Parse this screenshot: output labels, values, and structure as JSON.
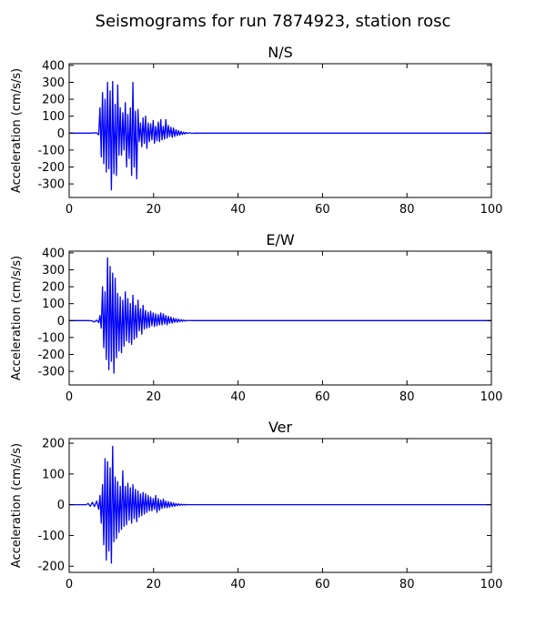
{
  "title": "Seismograms for run 7874923, station rosc",
  "chart_data": [
    {
      "type": "line",
      "title": "N/S",
      "xlabel": "",
      "ylabel": "Acceleration (cm/s/s)",
      "xlim": [
        0,
        100
      ],
      "ylim": [
        -380,
        410
      ],
      "xticks": [
        0,
        20,
        40,
        60,
        80,
        100
      ],
      "yticks": [
        -300,
        -200,
        -100,
        0,
        100,
        200,
        300,
        400
      ],
      "color": "#0000ff",
      "grid": false,
      "series": [
        {
          "x": [
            0,
            5,
            6.5,
            7,
            7.3,
            7.6,
            7.9,
            8.2,
            8.5,
            8.8,
            9.1,
            9.4,
            9.7,
            10,
            10.3,
            10.6,
            10.9,
            11.2,
            11.5,
            11.8,
            12.1,
            12.4,
            12.7,
            13,
            13.3,
            13.6,
            13.9,
            14.2,
            14.5,
            14.8,
            15.1,
            15.4,
            15.7,
            16,
            16.3,
            16.6,
            16.9,
            17.2,
            17.5,
            17.8,
            18.1,
            18.4,
            18.7,
            19,
            19.3,
            19.6,
            19.9,
            20.2,
            20.5,
            20.8,
            21.1,
            21.4,
            21.7,
            22,
            22.3,
            22.6,
            22.9,
            23.2,
            23.5,
            23.8,
            24.1,
            24.4,
            24.7,
            25,
            25.3,
            25.6,
            25.9,
            26.2,
            26.5,
            26.8,
            27.1,
            27.4,
            27.7,
            28,
            28.5,
            29,
            30,
            100
          ],
          "y": [
            0,
            0,
            2,
            -10,
            150,
            -140,
            240,
            -180,
            200,
            -230,
            300,
            -210,
            250,
            -335,
            305,
            -240,
            170,
            -250,
            285,
            -130,
            150,
            -130,
            120,
            -100,
            180,
            -200,
            110,
            -150,
            150,
            -250,
            300,
            -200,
            130,
            -270,
            140,
            -50,
            60,
            -80,
            90,
            -60,
            100,
            -90,
            60,
            -50,
            55,
            -40,
            75,
            -60,
            40,
            -45,
            65,
            -50,
            80,
            -40,
            40,
            -35,
            80,
            -30,
            45,
            -20,
            35,
            -25,
            30,
            -20,
            20,
            -15,
            15,
            -12,
            10,
            -8,
            6,
            -5,
            4,
            -2,
            2,
            -1,
            0,
            0
          ]
        }
      ]
    },
    {
      "type": "line",
      "title": "E/W",
      "xlabel": "",
      "ylabel": "Acceleration (cm/s/s)",
      "xlim": [
        0,
        100
      ],
      "ylim": [
        -380,
        410
      ],
      "xticks": [
        0,
        20,
        40,
        60,
        80,
        100
      ],
      "yticks": [
        -300,
        -200,
        -100,
        0,
        100,
        200,
        300,
        400
      ],
      "color": "#0000ff",
      "grid": false,
      "series": [
        {
          "x": [
            0,
            5,
            5.5,
            6,
            6.5,
            7,
            7.3,
            7.6,
            7.9,
            8.2,
            8.5,
            8.8,
            9.1,
            9.4,
            9.7,
            10,
            10.3,
            10.6,
            10.9,
            11.2,
            11.5,
            11.8,
            12.1,
            12.4,
            12.7,
            13,
            13.3,
            13.6,
            13.9,
            14.2,
            14.5,
            14.8,
            15.1,
            15.4,
            15.7,
            16,
            16.3,
            16.6,
            16.9,
            17.2,
            17.5,
            17.8,
            18.1,
            18.4,
            18.7,
            19,
            19.3,
            19.6,
            19.9,
            20.2,
            20.5,
            20.8,
            21.1,
            21.4,
            21.7,
            22,
            22.3,
            22.6,
            22.9,
            23.2,
            23.5,
            23.8,
            24.1,
            24.4,
            24.7,
            25,
            25.3,
            25.6,
            25.9,
            26.2,
            26.5,
            26.8,
            27.1,
            27.4,
            27.7,
            28,
            28.5,
            29,
            30,
            100
          ],
          "y": [
            0,
            0,
            -3,
            -8,
            3,
            -12,
            30,
            -45,
            200,
            -160,
            170,
            -230,
            370,
            -290,
            320,
            -240,
            280,
            -310,
            250,
            -220,
            160,
            -180,
            140,
            -190,
            120,
            -150,
            170,
            -120,
            130,
            -130,
            100,
            -140,
            150,
            -110,
            90,
            -100,
            120,
            -60,
            70,
            -80,
            90,
            -50,
            60,
            -45,
            50,
            -40,
            55,
            -30,
            45,
            -35,
            40,
            -30,
            35,
            -25,
            45,
            -25,
            40,
            -20,
            30,
            -25,
            25,
            -15,
            20,
            -15,
            15,
            -10,
            12,
            -10,
            8,
            -6,
            6,
            -5,
            4,
            -3,
            2,
            -1,
            1,
            0,
            0,
            0
          ]
        }
      ]
    },
    {
      "type": "line",
      "title": "Ver",
      "xlabel": "",
      "ylabel": "Acceleration (cm/s/s)",
      "xlim": [
        0,
        100
      ],
      "ylim": [
        -220,
        215
      ],
      "xticks": [
        0,
        20,
        40,
        60,
        80,
        100
      ],
      "yticks": [
        -200,
        -100,
        0,
        100,
        200
      ],
      "color": "#0000ff",
      "grid": false,
      "series": [
        {
          "x": [
            0,
            4,
            4.5,
            5,
            5.5,
            6,
            6.5,
            7,
            7.3,
            7.6,
            7.9,
            8.2,
            8.5,
            8.8,
            9.1,
            9.4,
            9.7,
            10,
            10.3,
            10.6,
            10.9,
            11.2,
            11.5,
            11.8,
            12.1,
            12.4,
            12.7,
            13,
            13.3,
            13.6,
            13.9,
            14.2,
            14.5,
            14.8,
            15.1,
            15.4,
            15.7,
            16,
            16.3,
            16.6,
            16.9,
            17.2,
            17.5,
            17.8,
            18.1,
            18.4,
            18.7,
            19,
            19.3,
            19.6,
            19.9,
            20.2,
            20.5,
            20.8,
            21.1,
            21.4,
            21.7,
            22,
            22.3,
            22.6,
            22.9,
            23.2,
            23.5,
            23.8,
            24.1,
            24.4,
            24.7,
            25,
            25.3,
            25.6,
            25.9,
            26.2,
            26.5,
            26.8,
            27.1,
            27.4,
            27.7,
            28,
            28.5,
            29,
            30,
            100
          ],
          "y": [
            0,
            0,
            4,
            -5,
            8,
            -6,
            12,
            -15,
            30,
            -60,
            65,
            -130,
            150,
            -180,
            140,
            -150,
            120,
            -190,
            190,
            -120,
            90,
            -110,
            75,
            -90,
            60,
            -80,
            110,
            -70,
            60,
            -65,
            70,
            -50,
            55,
            -60,
            65,
            -45,
            50,
            -55,
            45,
            -40,
            35,
            -35,
            40,
            -30,
            35,
            -25,
            30,
            -20,
            25,
            -20,
            20,
            -15,
            30,
            -25,
            20,
            -18,
            15,
            -12,
            18,
            -10,
            12,
            -10,
            10,
            -8,
            8,
            -6,
            6,
            -5,
            4,
            -3,
            3,
            -2,
            2,
            -1,
            1,
            -1,
            1,
            0,
            0,
            0,
            0,
            0
          ]
        }
      ]
    }
  ]
}
